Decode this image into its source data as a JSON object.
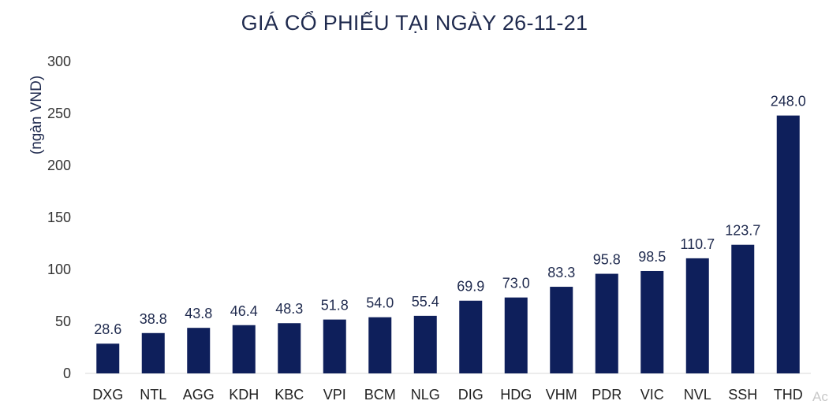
{
  "chart_data": {
    "type": "bar",
    "title": "GIÁ CỔ PHIẾU TẠI NGÀY 26-11-21",
    "xlabel": "",
    "ylabel": "(ngàn VND)",
    "ylim": [
      0,
      300
    ],
    "yticks": [
      0,
      50,
      100,
      150,
      200,
      250,
      300
    ],
    "grid": false,
    "bar_color": "#0e1f5b",
    "categories": [
      "DXG",
      "NTL",
      "AGG",
      "KDH",
      "KBC",
      "VPI",
      "BCM",
      "NLG",
      "DIG",
      "HDG",
      "VHM",
      "PDR",
      "VIC",
      "NVL",
      "SSH",
      "THD"
    ],
    "values": [
      28.6,
      38.8,
      43.8,
      46.4,
      48.3,
      51.8,
      54.0,
      55.4,
      69.9,
      73.0,
      83.3,
      95.8,
      98.5,
      110.7,
      123.7,
      248.0
    ],
    "value_labels": [
      "28.6",
      "38.8",
      "43.8",
      "46.4",
      "48.3",
      "51.8",
      "54.0",
      "55.4",
      "69.9",
      "73.0",
      "83.3",
      "95.8",
      "98.5",
      "110.7",
      "123.7",
      "248.0"
    ]
  },
  "watermark": "Ac"
}
